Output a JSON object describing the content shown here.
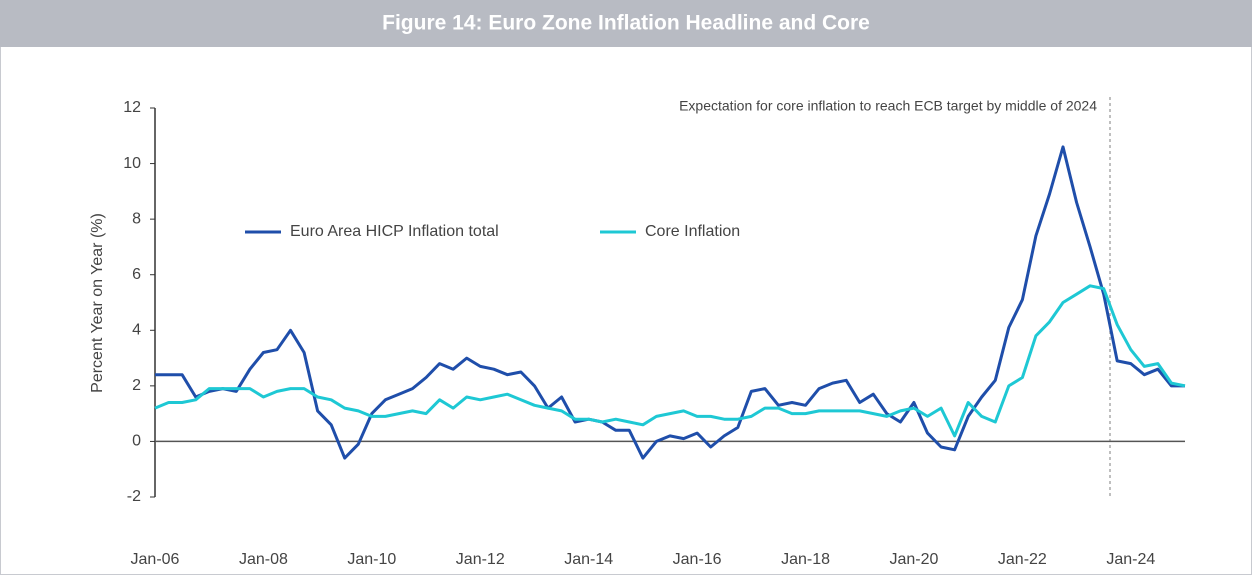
{
  "chart_data": {
    "type": "line",
    "title": "Figure 14: Euro Zone Inflation Headline and Core",
    "y_label": "Percent Year on Year (%)",
    "annotation": "Expectation for core inflation to reach ECB target by middle of 2024",
    "categories": [
      "Jan-06",
      null,
      null,
      null,
      null,
      null,
      null,
      null,
      "Jan-08",
      null,
      null,
      null,
      null,
      null,
      null,
      null,
      "Jan-10",
      null,
      null,
      null,
      null,
      null,
      null,
      null,
      "Jan-12",
      null,
      null,
      null,
      null,
      null,
      null,
      null,
      "Jan-14",
      null,
      null,
      null,
      null,
      null,
      null,
      null,
      "Jan-16",
      null,
      null,
      null,
      null,
      null,
      null,
      null,
      "Jan-18",
      null,
      null,
      null,
      null,
      null,
      null,
      null,
      "Jan-20",
      null,
      null,
      null,
      null,
      null,
      null,
      null,
      "Jan-22",
      null,
      null,
      null,
      null,
      null,
      null,
      null,
      "Jan-24",
      null,
      null,
      null,
      null
    ],
    "series": [
      {
        "name": "Euro Area HICP Inflation total",
        "color": "#1f4eaa",
        "values": [
          2.4,
          2.4,
          2.4,
          1.6,
          1.8,
          1.9,
          1.8,
          2.6,
          3.2,
          3.3,
          4.0,
          3.2,
          1.1,
          0.6,
          -0.6,
          -0.1,
          1.0,
          1.5,
          1.7,
          1.9,
          2.3,
          2.8,
          2.6,
          3.0,
          2.7,
          2.6,
          2.4,
          2.5,
          2.0,
          1.2,
          1.6,
          0.7,
          0.8,
          0.7,
          0.4,
          0.4,
          -0.6,
          0.0,
          0.2,
          0.1,
          0.3,
          -0.2,
          0.2,
          0.5,
          1.8,
          1.9,
          1.3,
          1.4,
          1.3,
          1.9,
          2.1,
          2.2,
          1.4,
          1.7,
          1.0,
          0.7,
          1.4,
          0.3,
          -0.2,
          -0.3,
          0.9,
          1.6,
          2.2,
          4.1,
          5.1,
          7.4,
          8.9,
          10.6,
          8.6,
          7.0,
          5.3,
          2.9,
          2.8,
          2.4,
          2.6,
          2.0,
          2.0
        ]
      },
      {
        "name": "Core Inflation",
        "color": "#1ec8d4",
        "values": [
          1.2,
          1.4,
          1.4,
          1.5,
          1.9,
          1.9,
          1.9,
          1.9,
          1.6,
          1.8,
          1.9,
          1.9,
          1.6,
          1.5,
          1.2,
          1.1,
          0.9,
          0.9,
          1.0,
          1.1,
          1.0,
          1.5,
          1.2,
          1.6,
          1.5,
          1.6,
          1.7,
          1.5,
          1.3,
          1.2,
          1.1,
          0.8,
          0.8,
          0.7,
          0.8,
          0.7,
          0.6,
          0.9,
          1.0,
          1.1,
          0.9,
          0.9,
          0.8,
          0.8,
          0.9,
          1.2,
          1.2,
          1.0,
          1.0,
          1.1,
          1.1,
          1.1,
          1.1,
          1.0,
          0.9,
          1.1,
          1.2,
          0.9,
          1.2,
          0.2,
          1.4,
          0.9,
          0.7,
          2.0,
          2.3,
          3.8,
          4.3,
          5.0,
          5.3,
          5.6,
          5.5,
          4.2,
          3.3,
          2.7,
          2.8,
          2.1,
          2.0
        ]
      }
    ],
    "ylim": [
      -2,
      12
    ],
    "yticks": [
      -2,
      0,
      2,
      4,
      6,
      8,
      10,
      12
    ],
    "legend": "upper left"
  }
}
